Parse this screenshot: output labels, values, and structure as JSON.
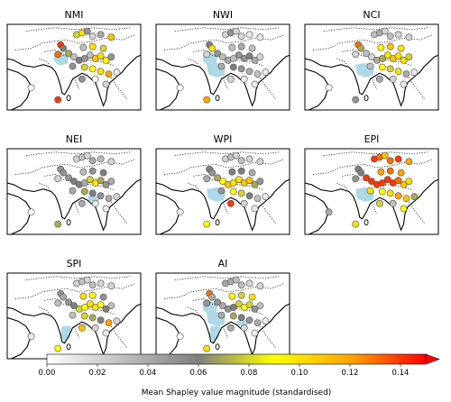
{
  "panels": [
    {
      "title": "NMI",
      "highlight": [
        "north-west"
      ],
      "stations": [
        [
          0.52,
          0.12,
          0.08
        ],
        [
          0.56,
          0.1,
          0.1
        ],
        [
          0.6,
          0.08,
          0.05
        ],
        [
          0.64,
          0.14,
          0.02
        ],
        [
          0.7,
          0.12,
          0.04
        ],
        [
          0.78,
          0.15,
          0.11
        ],
        [
          0.4,
          0.24,
          0.14
        ],
        [
          0.38,
          0.35,
          0.13
        ],
        [
          0.42,
          0.28,
          0.06
        ],
        [
          0.46,
          0.34,
          0.07
        ],
        [
          0.5,
          0.38,
          0.03
        ],
        [
          0.54,
          0.42,
          0.06
        ],
        [
          0.58,
          0.4,
          0.05
        ],
        [
          0.62,
          0.36,
          0.03
        ],
        [
          0.66,
          0.4,
          0.11
        ],
        [
          0.7,
          0.37,
          0.1
        ],
        [
          0.74,
          0.42,
          0.09
        ],
        [
          0.78,
          0.38,
          0.05
        ],
        [
          0.57,
          0.27,
          0.03
        ],
        [
          0.64,
          0.26,
          0.1
        ],
        [
          0.72,
          0.28,
          0.08
        ],
        [
          0.49,
          0.49,
          0.05
        ],
        [
          0.58,
          0.5,
          0.08
        ],
        [
          0.64,
          0.52,
          0.09
        ],
        [
          0.7,
          0.55,
          0.1
        ],
        [
          0.76,
          0.58,
          0.12
        ],
        [
          0.66,
          0.64,
          0.0
        ],
        [
          0.74,
          0.7,
          0.02
        ],
        [
          0.82,
          0.56,
          0.01
        ],
        [
          0.56,
          0.64,
          0.05
        ],
        [
          0.18,
          0.74,
          0.0
        ],
        [
          0.38,
          0.88,
          0.14
        ]
      ]
    },
    {
      "title": "NWI",
      "highlight": [
        "north-west",
        "central"
      ],
      "stations": [
        [
          0.52,
          0.12,
          0.02
        ],
        [
          0.56,
          0.1,
          0.05
        ],
        [
          0.6,
          0.08,
          0.02
        ],
        [
          0.64,
          0.14,
          0.02
        ],
        [
          0.7,
          0.12,
          0.01
        ],
        [
          0.78,
          0.15,
          0.01
        ],
        [
          0.4,
          0.24,
          0.06
        ],
        [
          0.38,
          0.35,
          0.02
        ],
        [
          0.42,
          0.28,
          0.1
        ],
        [
          0.46,
          0.34,
          0.05
        ],
        [
          0.5,
          0.38,
          0.03
        ],
        [
          0.54,
          0.42,
          0.04
        ],
        [
          0.58,
          0.4,
          0.03
        ],
        [
          0.62,
          0.36,
          0.05
        ],
        [
          0.66,
          0.4,
          0.05
        ],
        [
          0.7,
          0.37,
          0.06
        ],
        [
          0.74,
          0.42,
          0.04
        ],
        [
          0.78,
          0.38,
          0.02
        ],
        [
          0.57,
          0.27,
          0.03
        ],
        [
          0.64,
          0.26,
          0.04
        ],
        [
          0.72,
          0.28,
          0.03
        ],
        [
          0.49,
          0.49,
          0.04
        ],
        [
          0.58,
          0.5,
          0.06
        ],
        [
          0.64,
          0.52,
          0.05
        ],
        [
          0.7,
          0.55,
          0.04
        ],
        [
          0.76,
          0.58,
          0.03
        ],
        [
          0.66,
          0.64,
          0.01
        ],
        [
          0.74,
          0.7,
          0.01
        ],
        [
          0.82,
          0.56,
          0.01
        ],
        [
          0.56,
          0.64,
          0.02
        ],
        [
          0.18,
          0.74,
          0.0
        ],
        [
          0.38,
          0.88,
          0.12
        ]
      ]
    },
    {
      "title": "NCI",
      "highlight": [
        "central"
      ],
      "stations": [
        [
          0.52,
          0.12,
          0.03
        ],
        [
          0.56,
          0.1,
          0.04
        ],
        [
          0.6,
          0.08,
          0.02
        ],
        [
          0.64,
          0.14,
          0.03
        ],
        [
          0.7,
          0.12,
          0.02
        ],
        [
          0.78,
          0.15,
          0.02
        ],
        [
          0.4,
          0.24,
          0.13
        ],
        [
          0.38,
          0.35,
          0.02
        ],
        [
          0.42,
          0.28,
          0.07
        ],
        [
          0.46,
          0.34,
          0.03
        ],
        [
          0.5,
          0.38,
          0.02
        ],
        [
          0.54,
          0.42,
          0.04
        ],
        [
          0.58,
          0.4,
          0.07
        ],
        [
          0.62,
          0.36,
          0.1
        ],
        [
          0.66,
          0.4,
          0.11
        ],
        [
          0.7,
          0.37,
          0.1
        ],
        [
          0.74,
          0.42,
          0.1
        ],
        [
          0.78,
          0.38,
          0.08
        ],
        [
          0.57,
          0.27,
          0.09
        ],
        [
          0.64,
          0.26,
          0.11
        ],
        [
          0.72,
          0.28,
          0.1
        ],
        [
          0.49,
          0.49,
          0.03
        ],
        [
          0.58,
          0.5,
          0.09
        ],
        [
          0.64,
          0.52,
          0.08
        ],
        [
          0.7,
          0.55,
          0.1
        ],
        [
          0.76,
          0.58,
          0.04
        ],
        [
          0.66,
          0.64,
          0.02
        ],
        [
          0.74,
          0.7,
          0.01
        ],
        [
          0.82,
          0.56,
          0.01
        ],
        [
          0.56,
          0.64,
          0.04
        ],
        [
          0.18,
          0.74,
          0.0
        ],
        [
          0.38,
          0.88,
          0.05
        ]
      ]
    },
    {
      "title": "NEI",
      "highlight": [
        "north-east"
      ],
      "stations": [
        [
          0.52,
          0.12,
          0.02
        ],
        [
          0.56,
          0.1,
          0.03
        ],
        [
          0.6,
          0.08,
          0.02
        ],
        [
          0.64,
          0.14,
          0.04
        ],
        [
          0.7,
          0.12,
          0.03
        ],
        [
          0.78,
          0.15,
          0.02
        ],
        [
          0.4,
          0.24,
          0.05
        ],
        [
          0.38,
          0.35,
          0.02
        ],
        [
          0.42,
          0.28,
          0.05
        ],
        [
          0.46,
          0.34,
          0.05
        ],
        [
          0.5,
          0.38,
          0.06
        ],
        [
          0.54,
          0.42,
          0.06
        ],
        [
          0.58,
          0.4,
          0.04
        ],
        [
          0.62,
          0.36,
          0.08
        ],
        [
          0.66,
          0.4,
          0.1
        ],
        [
          0.7,
          0.37,
          0.07
        ],
        [
          0.74,
          0.42,
          0.05
        ],
        [
          0.78,
          0.38,
          0.04
        ],
        [
          0.57,
          0.27,
          0.03
        ],
        [
          0.64,
          0.26,
          0.05
        ],
        [
          0.72,
          0.28,
          0.06
        ],
        [
          0.49,
          0.49,
          0.04
        ],
        [
          0.58,
          0.5,
          0.07
        ],
        [
          0.64,
          0.52,
          0.06
        ],
        [
          0.7,
          0.55,
          0.05
        ],
        [
          0.76,
          0.58,
          0.04
        ],
        [
          0.66,
          0.64,
          0.01
        ],
        [
          0.74,
          0.7,
          0.01
        ],
        [
          0.82,
          0.56,
          0.02
        ],
        [
          0.56,
          0.64,
          0.04
        ],
        [
          0.18,
          0.74,
          0.0
        ],
        [
          0.38,
          0.88,
          0.07
        ]
      ]
    },
    {
      "title": "WPI",
      "highlight": [
        "central"
      ],
      "stations": [
        [
          0.52,
          0.12,
          0.02
        ],
        [
          0.56,
          0.1,
          0.03
        ],
        [
          0.6,
          0.08,
          0.02
        ],
        [
          0.64,
          0.14,
          0.03
        ],
        [
          0.7,
          0.12,
          0.02
        ],
        [
          0.78,
          0.15,
          0.02
        ],
        [
          0.4,
          0.24,
          0.06
        ],
        [
          0.38,
          0.35,
          0.04
        ],
        [
          0.42,
          0.28,
          0.05
        ],
        [
          0.46,
          0.34,
          0.07
        ],
        [
          0.5,
          0.38,
          0.09
        ],
        [
          0.54,
          0.42,
          0.11
        ],
        [
          0.58,
          0.4,
          0.1
        ],
        [
          0.62,
          0.36,
          0.1
        ],
        [
          0.66,
          0.4,
          0.11
        ],
        [
          0.7,
          0.37,
          0.11
        ],
        [
          0.74,
          0.42,
          0.07
        ],
        [
          0.78,
          0.38,
          0.05
        ],
        [
          0.57,
          0.27,
          0.06
        ],
        [
          0.64,
          0.26,
          0.06
        ],
        [
          0.72,
          0.28,
          0.04
        ],
        [
          0.49,
          0.49,
          0.05
        ],
        [
          0.58,
          0.5,
          0.09
        ],
        [
          0.64,
          0.52,
          0.08
        ],
        [
          0.7,
          0.55,
          0.06
        ],
        [
          0.76,
          0.58,
          0.03
        ],
        [
          0.66,
          0.64,
          0.02
        ],
        [
          0.74,
          0.7,
          0.01
        ],
        [
          0.82,
          0.56,
          0.01
        ],
        [
          0.56,
          0.64,
          0.14
        ],
        [
          0.18,
          0.74,
          0.01
        ],
        [
          0.38,
          0.88,
          0.09
        ]
      ]
    },
    {
      "title": "EPI",
      "highlight": [
        "central"
      ],
      "stations": [
        [
          0.52,
          0.12,
          0.14
        ],
        [
          0.56,
          0.1,
          0.13
        ],
        [
          0.6,
          0.08,
          0.11
        ],
        [
          0.64,
          0.14,
          0.13
        ],
        [
          0.7,
          0.12,
          0.14
        ],
        [
          0.78,
          0.15,
          0.12
        ],
        [
          0.4,
          0.24,
          0.06
        ],
        [
          0.38,
          0.35,
          0.05
        ],
        [
          0.42,
          0.28,
          0.06
        ],
        [
          0.46,
          0.34,
          0.14
        ],
        [
          0.5,
          0.38,
          0.14
        ],
        [
          0.54,
          0.42,
          0.14
        ],
        [
          0.58,
          0.4,
          0.14
        ],
        [
          0.62,
          0.36,
          0.14
        ],
        [
          0.66,
          0.4,
          0.14
        ],
        [
          0.7,
          0.37,
          0.13
        ],
        [
          0.74,
          0.42,
          0.11
        ],
        [
          0.78,
          0.38,
          0.1
        ],
        [
          0.57,
          0.27,
          0.12
        ],
        [
          0.64,
          0.26,
          0.13
        ],
        [
          0.72,
          0.28,
          0.12
        ],
        [
          0.49,
          0.49,
          0.1
        ],
        [
          0.58,
          0.5,
          0.09
        ],
        [
          0.64,
          0.52,
          0.1
        ],
        [
          0.7,
          0.55,
          0.12
        ],
        [
          0.76,
          0.58,
          0.11
        ],
        [
          0.66,
          0.64,
          0.03
        ],
        [
          0.74,
          0.7,
          0.09
        ],
        [
          0.82,
          0.56,
          0.07
        ],
        [
          0.56,
          0.64,
          0.08
        ],
        [
          0.18,
          0.74,
          0.04
        ],
        [
          0.38,
          0.88,
          0.1
        ]
      ]
    },
    {
      "title": "SPI",
      "highlight": [
        "south"
      ],
      "stations": [
        [
          0.52,
          0.12,
          0.02
        ],
        [
          0.56,
          0.1,
          0.03
        ],
        [
          0.6,
          0.08,
          0.02
        ],
        [
          0.64,
          0.14,
          0.03
        ],
        [
          0.7,
          0.12,
          0.02
        ],
        [
          0.78,
          0.15,
          0.02
        ],
        [
          0.4,
          0.24,
          0.05
        ],
        [
          0.38,
          0.35,
          0.03
        ],
        [
          0.42,
          0.28,
          0.04
        ],
        [
          0.46,
          0.34,
          0.05
        ],
        [
          0.5,
          0.38,
          0.06
        ],
        [
          0.54,
          0.42,
          0.08
        ],
        [
          0.58,
          0.4,
          0.09
        ],
        [
          0.62,
          0.36,
          0.1
        ],
        [
          0.66,
          0.4,
          0.1
        ],
        [
          0.7,
          0.37,
          0.09
        ],
        [
          0.74,
          0.42,
          0.06
        ],
        [
          0.78,
          0.38,
          0.03
        ],
        [
          0.57,
          0.27,
          0.1
        ],
        [
          0.64,
          0.26,
          0.09
        ],
        [
          0.72,
          0.28,
          0.05
        ],
        [
          0.49,
          0.49,
          0.03
        ],
        [
          0.58,
          0.5,
          0.08
        ],
        [
          0.64,
          0.52,
          0.07
        ],
        [
          0.7,
          0.55,
          0.06
        ],
        [
          0.76,
          0.58,
          0.12
        ],
        [
          0.66,
          0.64,
          0.02
        ],
        [
          0.74,
          0.7,
          0.01
        ],
        [
          0.82,
          0.56,
          0.02
        ],
        [
          0.56,
          0.64,
          0.11
        ],
        [
          0.18,
          0.74,
          0.01
        ],
        [
          0.38,
          0.88,
          0.09
        ]
      ]
    },
    {
      "title": "AI",
      "highlight": [
        "north-west",
        "central",
        "south",
        "north-east"
      ],
      "stations": [
        [
          0.52,
          0.12,
          0.04
        ],
        [
          0.56,
          0.1,
          0.04
        ],
        [
          0.6,
          0.08,
          0.03
        ],
        [
          0.64,
          0.14,
          0.03
        ],
        [
          0.7,
          0.12,
          0.02
        ],
        [
          0.78,
          0.15,
          0.02
        ],
        [
          0.4,
          0.24,
          0.13
        ],
        [
          0.38,
          0.35,
          0.05
        ],
        [
          0.42,
          0.28,
          0.04
        ],
        [
          0.46,
          0.34,
          0.05
        ],
        [
          0.5,
          0.38,
          0.04
        ],
        [
          0.54,
          0.42,
          0.05
        ],
        [
          0.58,
          0.4,
          0.06
        ],
        [
          0.62,
          0.36,
          0.08
        ],
        [
          0.66,
          0.4,
          0.09
        ],
        [
          0.7,
          0.37,
          0.08
        ],
        [
          0.74,
          0.42,
          0.05
        ],
        [
          0.78,
          0.38,
          0.03
        ],
        [
          0.57,
          0.27,
          0.09
        ],
        [
          0.64,
          0.26,
          0.08
        ],
        [
          0.72,
          0.28,
          0.1
        ],
        [
          0.49,
          0.49,
          0.04
        ],
        [
          0.58,
          0.5,
          0.07
        ],
        [
          0.64,
          0.52,
          0.06
        ],
        [
          0.7,
          0.55,
          0.05
        ],
        [
          0.76,
          0.58,
          0.04
        ],
        [
          0.66,
          0.64,
          0.02
        ],
        [
          0.74,
          0.7,
          0.01
        ],
        [
          0.82,
          0.56,
          0.01
        ],
        [
          0.56,
          0.64,
          0.04
        ],
        [
          0.18,
          0.74,
          0.0
        ],
        [
          0.38,
          0.88,
          0.1
        ]
      ]
    }
  ],
  "colorbar": {
    "label": "Mean Shapley value magnitude (standardised)",
    "ticks": [
      "0.00",
      "0.02",
      "0.04",
      "0.06",
      "0.08",
      "0.10",
      "0.12",
      "0.14"
    ],
    "min": 0.0,
    "max": 0.15,
    "stops": [
      "#ffffff",
      "#bfbfbf",
      "#7f7f7f",
      "#ffff00",
      "#ffa500",
      "#ff0000"
    ]
  },
  "colors": {
    "region_fill": "#add8e6",
    "coastline": "#000000",
    "border": "#000000",
    "station_edge": "#4d4d4d"
  }
}
